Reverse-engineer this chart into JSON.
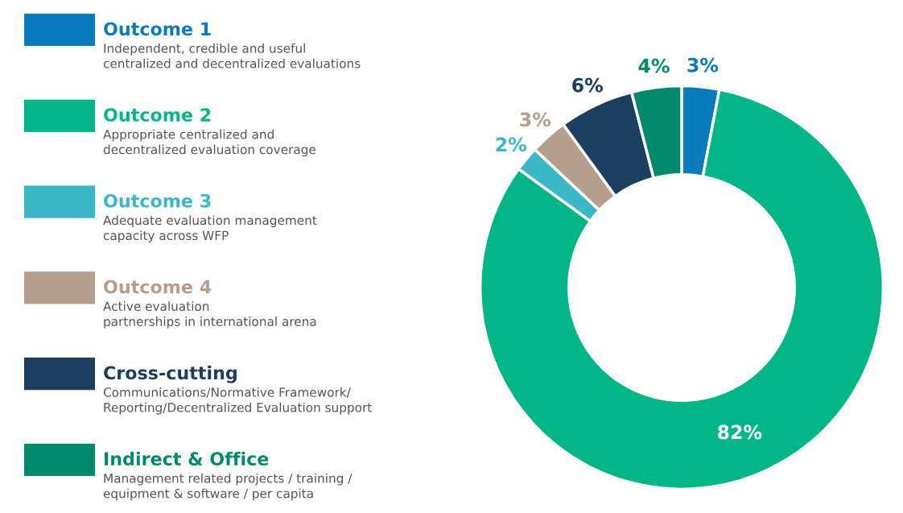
{
  "chart_data": {
    "type": "donut",
    "categories": [
      "Outcome 1",
      "Outcome 2",
      "Outcome 3",
      "Outcome 4",
      "Cross-cutting",
      "Indirect & Office"
    ],
    "values": [
      3,
      82,
      2,
      3,
      6,
      4
    ],
    "colors": [
      "#0a7bbd",
      "#00b686",
      "#3ab8c8",
      "#b59f8c",
      "#1c3f60",
      "#00896a"
    ],
    "value_labels": [
      "3%",
      "82%",
      "2%",
      "3%",
      "6%",
      "4%"
    ],
    "annotations": [
      "Independent, credible and useful\ncentralized and decentralized evaluations",
      "Appropriate centralized and\ndecentralized evaluation coverage",
      "Adequate evaluation management\ncapacity across WFP",
      "Active evaluation\npartnerships in international arena",
      "Communications/Normative Framework/\nReporting/Decentralized Evaluation support",
      "Management related projects / training /\nequipment & software / per capita"
    ],
    "legend": "left"
  }
}
